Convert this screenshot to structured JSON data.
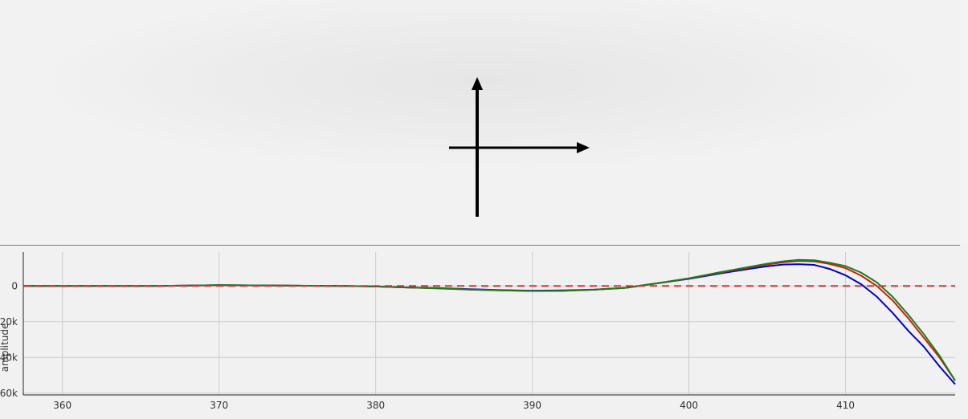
{
  "colors": {
    "gizmo": "#000000",
    "blue_series": "#0000cc",
    "red_series": "#cc2200",
    "green_series": "#1e7a1e",
    "zero_line": "#e03030",
    "grid": "#cccccc"
  },
  "chart_data": {
    "type": "line",
    "xlabel": "",
    "ylabel": "amplitude",
    "xlim": [
      357.5,
      417
    ],
    "ylim": [
      -61000,
      19000
    ],
    "grid": true,
    "x_ticks": [
      360,
      370,
      380,
      390,
      400,
      410
    ],
    "x_tick_labels": [
      "360",
      "370",
      "380",
      "390",
      "400",
      "410"
    ],
    "y_ticks": [
      0,
      -20000,
      -40000,
      -60000
    ],
    "y_tick_labels": [
      "0",
      "20k",
      "40k",
      "60k"
    ],
    "reference_line": {
      "y": 0,
      "style": "dashed"
    },
    "series": [
      {
        "x": [
          357.5,
          362,
          366,
          370,
          374,
          378,
          380,
          382,
          384,
          386,
          388,
          390,
          392,
          394,
          396,
          397,
          398,
          400,
          402,
          404,
          405,
          406,
          407,
          408,
          409,
          410,
          411,
          412,
          413,
          414,
          415,
          416,
          417
        ],
        "y": [
          0,
          0,
          0,
          500,
          200,
          0,
          -300,
          -800,
          -1200,
          -1800,
          -2300,
          -2600,
          -2500,
          -2000,
          -1000,
          300,
          1500,
          4000,
          7000,
          9800,
          11000,
          12000,
          12200,
          11800,
          9500,
          6000,
          1000,
          -6000,
          -15000,
          -25000,
          -34000,
          -45000,
          -55000
        ]
      },
      {
        "x": [
          357.5,
          362,
          366,
          370,
          374,
          378,
          380,
          382,
          384,
          386,
          388,
          390,
          392,
          394,
          396,
          397,
          398,
          400,
          402,
          404,
          405,
          406,
          407,
          408,
          409,
          410,
          411,
          412,
          413,
          414,
          415,
          416,
          417
        ],
        "y": [
          0,
          0,
          0,
          500,
          200,
          0,
          -300,
          -800,
          -1300,
          -2000,
          -2500,
          -2800,
          -2700,
          -2100,
          -1000,
          300,
          1500,
          4200,
          7500,
          10500,
          12000,
          13200,
          14000,
          13800,
          12300,
          10000,
          5800,
          0,
          -8000,
          -18000,
          -29000,
          -40000,
          -53000
        ]
      },
      {
        "x": [
          357.5,
          362,
          366,
          370,
          374,
          378,
          380,
          382,
          384,
          386,
          388,
          390,
          392,
          394,
          396,
          397,
          398,
          400,
          402,
          404,
          405,
          406,
          407,
          408,
          409,
          410,
          411,
          412,
          413,
          414,
          415,
          416,
          417
        ],
        "y": [
          0,
          0,
          0,
          500,
          200,
          0,
          -300,
          -800,
          -1300,
          -2000,
          -2500,
          -2800,
          -2700,
          -2100,
          -1000,
          300,
          1500,
          4300,
          7700,
          10900,
          12500,
          13800,
          14600,
          14400,
          13000,
          11200,
          7500,
          2000,
          -6000,
          -16000,
          -27000,
          -39000,
          -53000
        ]
      }
    ]
  }
}
